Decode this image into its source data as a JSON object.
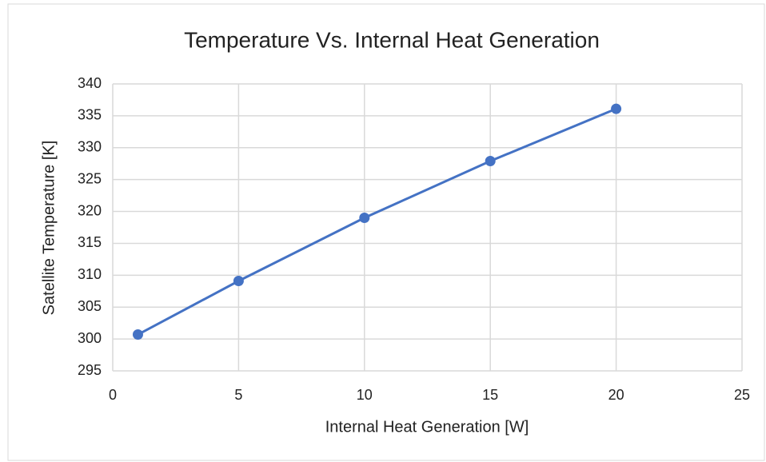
{
  "chart_data": {
    "type": "line",
    "title": "Temperature Vs. Internal Heat Generation",
    "x_label": "Internal Heat Generation [W]",
    "y_label": "Satellite Temperature [K]",
    "x": [
      1,
      5,
      10,
      15,
      20
    ],
    "series": [
      {
        "name": "Satellite Temperature [K]",
        "color": "#4472c4",
        "values": [
          300.7,
          309.1,
          319,
          327.9,
          336.1
        ]
      }
    ],
    "xlim": [
      0,
      25
    ],
    "xticks": [
      0,
      5,
      10,
      15,
      20,
      25
    ],
    "ylim": [
      295,
      340
    ],
    "yticks": [
      295,
      300,
      305,
      310,
      315,
      320,
      325,
      330,
      335,
      340
    ],
    "grid": true,
    "markers": true
  }
}
